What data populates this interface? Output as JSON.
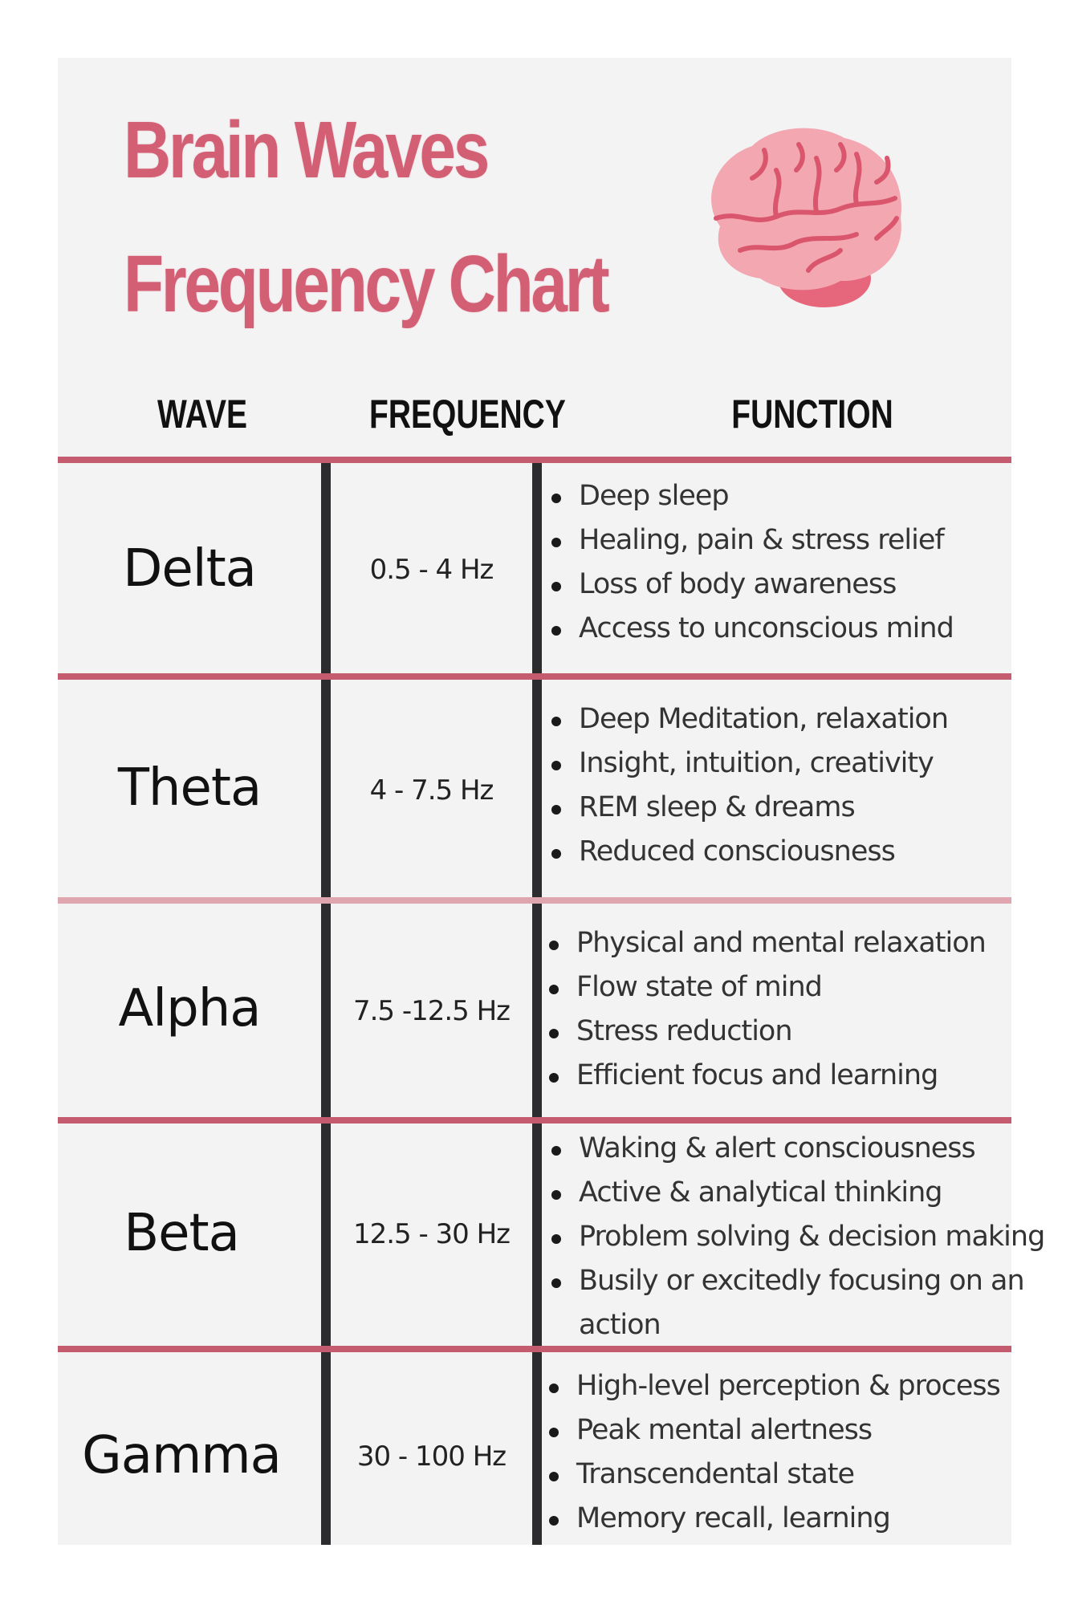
{
  "title": {
    "line1": "Brain Waves",
    "line2": "Frequency Chart"
  },
  "icon": "brain-icon",
  "colors": {
    "accent": "#d35f74",
    "divider": "#c55b6e",
    "column_rule": "#2c2c2e",
    "brain": "#f0a0ab"
  },
  "headers": {
    "wave": "WAVE",
    "frequency": "FREQUENCY",
    "function": "FUNCTION"
  },
  "rows": [
    {
      "wave": "Delta",
      "frequency": "0.5 - 4 Hz",
      "functions": [
        "Deep sleep",
        "Healing, pain & stress relief",
        "Loss of body awareness",
        "Access to unconscious mind"
      ]
    },
    {
      "wave": "Theta",
      "frequency": "4 - 7.5 Hz",
      "functions": [
        "Deep Meditation, relaxation",
        "Insight, intuition, creativity",
        "REM sleep & dreams",
        "Reduced consciousness"
      ]
    },
    {
      "wave": "Alpha",
      "frequency": "7.5 -12.5 Hz",
      "functions": [
        "Physical and mental relaxation",
        "Flow state of mind",
        "Stress reduction",
        "Efficient focus and learning"
      ]
    },
    {
      "wave": "Beta",
      "frequency": "12.5 - 30 Hz",
      "functions": [
        "Waking & alert consciousness",
        "Active & analytical thinking",
        "Problem solving & decision making",
        "Busily or excitedly focusing on an",
        "action"
      ]
    },
    {
      "wave": "Gamma",
      "frequency": "30 - 100 Hz",
      "functions": [
        "High-level perception & process",
        "Peak mental alertness",
        "Transcendental state",
        "Memory recall, learning"
      ]
    }
  ]
}
